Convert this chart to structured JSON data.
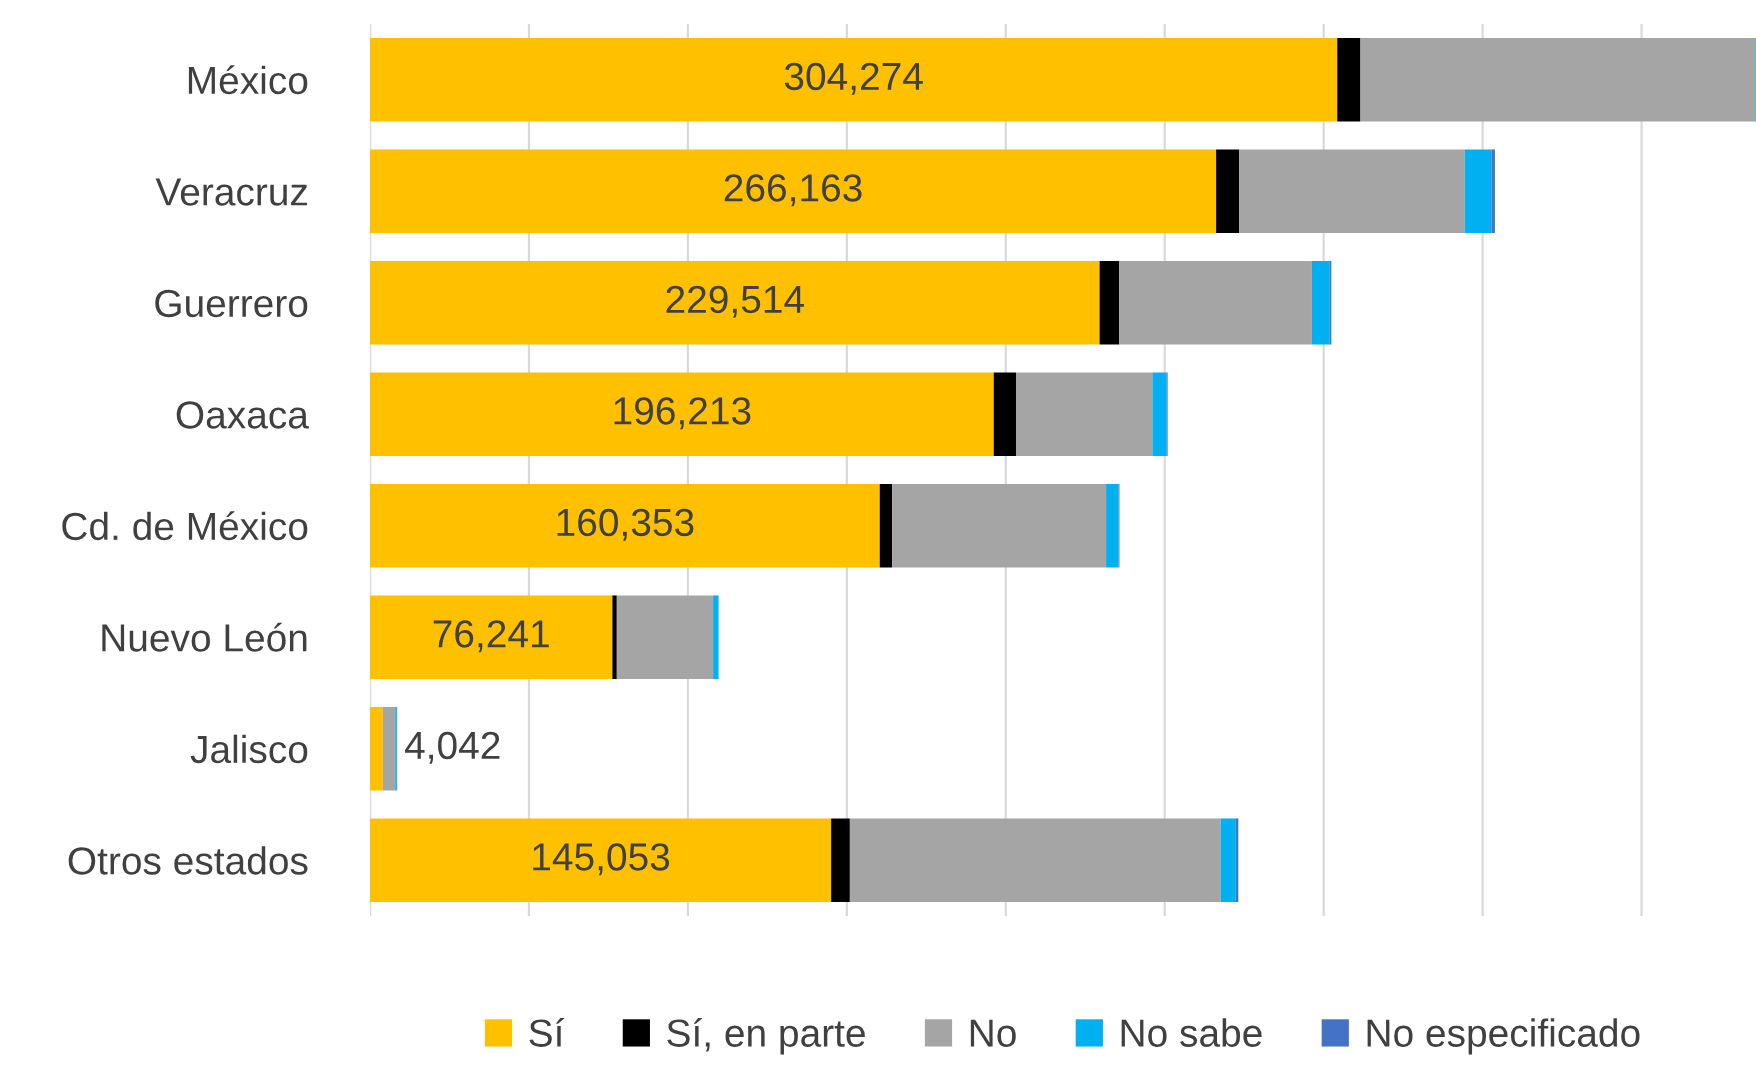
{
  "chart_data": {
    "type": "bar",
    "orientation": "horizontal",
    "stacked": true,
    "categories": [
      "México",
      "Veracruz",
      "Guerrero",
      "Oaxaca",
      "Cd. de México",
      "Nuevo León",
      "Jalisco",
      "Otros estados"
    ],
    "series": [
      {
        "name": "Sí",
        "color": "#ffc000",
        "values": [
          304274,
          266163,
          229514,
          196213,
          160353,
          76241,
          4042,
          145053
        ],
        "value_labels": [
          "304,274",
          "266,163",
          "229,514",
          "196,213",
          "160,353",
          "76,241",
          "4,042",
          "145,053"
        ]
      },
      {
        "name": "Sí, en parte",
        "color": "#000000",
        "values": [
          7300,
          7300,
          6200,
          7000,
          3900,
          1400,
          null,
          5900
        ]
      },
      {
        "name": "No",
        "color": "#a5a5a5",
        "values": [
          124200,
          70900,
          60600,
          42900,
          67300,
          30300,
          3900,
          116600
        ]
      },
      {
        "name": "No sabe",
        "color": "#00b0f0",
        "values": [
          500,
          8400,
          5600,
          4500,
          3900,
          1700,
          500,
          4800
        ]
      },
      {
        "name": "No especificado",
        "color": "#4472c4",
        "values": [
          200,
          1100,
          500,
          300,
          300,
          null,
          100,
          800
        ]
      }
    ],
    "xlim": [
      0,
      436000
    ],
    "xticks": [
      {
        "value": 0,
        "label": null
      },
      {
        "value": 50000,
        "label": null
      },
      {
        "value": 100000,
        "label": null
      },
      {
        "value": 150000,
        "label": null
      },
      {
        "value": 200000,
        "label": null
      },
      {
        "value": 250000,
        "label": null
      },
      {
        "value": 300000,
        "label": null
      },
      {
        "value": 350000,
        "label": null
      },
      {
        "value": 400000,
        "label": null
      }
    ],
    "grid": "x",
    "legend": "bottom",
    "tick_labels": "y"
  }
}
